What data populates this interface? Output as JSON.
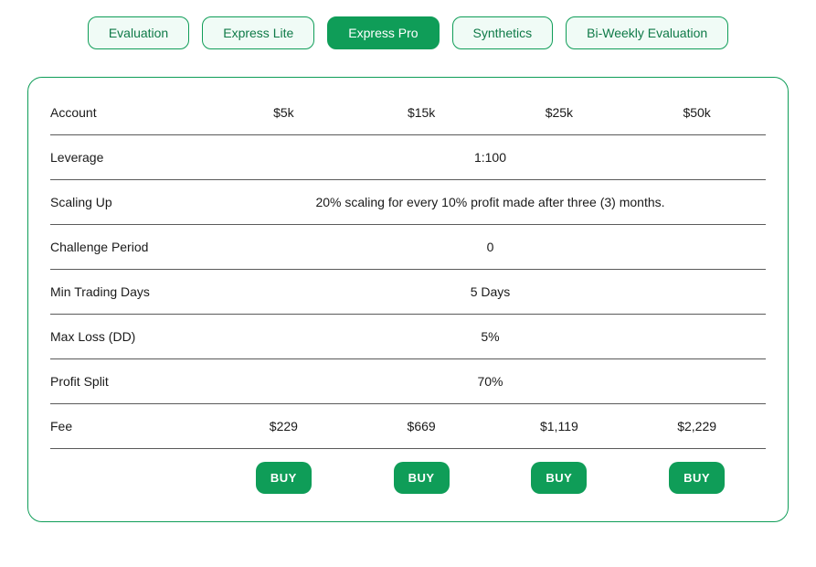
{
  "colors": {
    "accent": "#0f9d58",
    "tab_bg": "#f0fbf6",
    "tab_text": "#0f7a48",
    "text": "#1a1a1a",
    "row_border": "#5a5a5a",
    "card_border": "#0f9d58",
    "background": "#ffffff"
  },
  "tabs": [
    {
      "label": "Evaluation",
      "active": false
    },
    {
      "label": "Express Lite",
      "active": false
    },
    {
      "label": "Express Pro",
      "active": true
    },
    {
      "label": "Synthetics",
      "active": false
    },
    {
      "label": "Bi-Weekly Evaluation",
      "active": false
    }
  ],
  "table": {
    "header": {
      "label": "Account",
      "columns": [
        "$5k",
        "$15k",
        "$25k",
        "$50k"
      ]
    },
    "rows": [
      {
        "label": "Leverage",
        "spanned": true,
        "value": "1:100"
      },
      {
        "label": "Scaling Up",
        "spanned": true,
        "value": "20% scaling for every 10% profit made after three (3) months."
      },
      {
        "label": "Challenge Period",
        "spanned": true,
        "value": "0"
      },
      {
        "label": "Min Trading Days",
        "spanned": true,
        "value": "5 Days"
      },
      {
        "label": "Max Loss (DD)",
        "spanned": true,
        "value": "5%"
      },
      {
        "label": "Profit Split",
        "spanned": true,
        "value": "70%"
      },
      {
        "label": "Fee",
        "spanned": false,
        "values": [
          "$229",
          "$669",
          "$1,119",
          "$2,229"
        ]
      }
    ],
    "buy_label": "BUY"
  }
}
